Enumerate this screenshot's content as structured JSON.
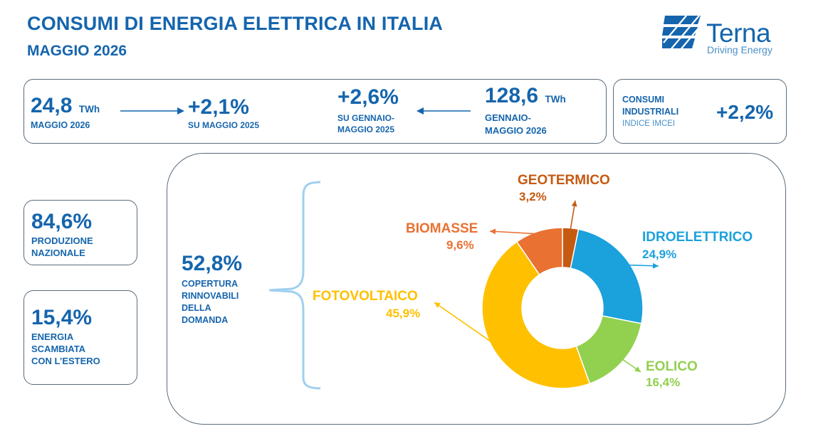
{
  "header": {
    "title": "CONSUMI DI ENERGIA ELETTRICA IN ITALIA",
    "subtitle": "MAGGIO 2026"
  },
  "logo": {
    "name": "Terna",
    "tagline": "Driving Energy",
    "icon": "terna-logo-icon"
  },
  "kpi_bar": {
    "may_value": "24,8",
    "may_unit": "TWh",
    "may_label": "MAGGIO 2026",
    "may_change": "+2,1%",
    "may_change_label": "SU MAGGIO 2025",
    "ytd_change": "+2,6%",
    "ytd_change_label_1": "SU GENNAIO-",
    "ytd_change_label_2": "MAGGIO 2025",
    "ytd_value": "128,6",
    "ytd_unit": "TWh",
    "ytd_label_1": "GENNAIO-",
    "ytd_label_2": "MAGGIO 2026"
  },
  "industrial": {
    "label_1": "CONSUMI",
    "label_2": "INDUSTRIALI",
    "index": "INDICE IMCEI",
    "value": "+2,2%"
  },
  "side_cards": {
    "national": {
      "value": "84,6%",
      "label_1": "PRODUZIONE",
      "label_2": "NAZIONALE"
    },
    "abroad": {
      "value": "15,4%",
      "label_1": "ENERGIA",
      "label_2": "SCAMBIATA",
      "label_3": "CON L’ESTERO"
    }
  },
  "renewables": {
    "value": "52,8%",
    "label_1": "COPERTURA",
    "label_2": "RINNOVABILI",
    "label_3": "DELLA",
    "label_4": "DOMANDA"
  },
  "colors": {
    "brand": "#1565ad",
    "geotermico": "#c55a11",
    "idroelettrico": "#1ba1dc",
    "eolico": "#92d050",
    "fotovoltaico": "#ffc000",
    "biomasse": "#e97132"
  },
  "chart_data": {
    "type": "pie",
    "donut": true,
    "categories": [
      "GEOTERMICO",
      "IDROELETTRICO",
      "EOLICO",
      "FOTOVOLTAICO",
      "BIOMASSE"
    ],
    "values": [
      3.2,
      24.9,
      16.4,
      45.9,
      9.6
    ],
    "value_labels": [
      "3,2%",
      "24,9%",
      "16,4%",
      "45,9%",
      "9,6%"
    ],
    "colors": [
      "#c55a11",
      "#1ba1dc",
      "#92d050",
      "#ffc000",
      "#e97132"
    ],
    "title": "",
    "legend": "none"
  }
}
